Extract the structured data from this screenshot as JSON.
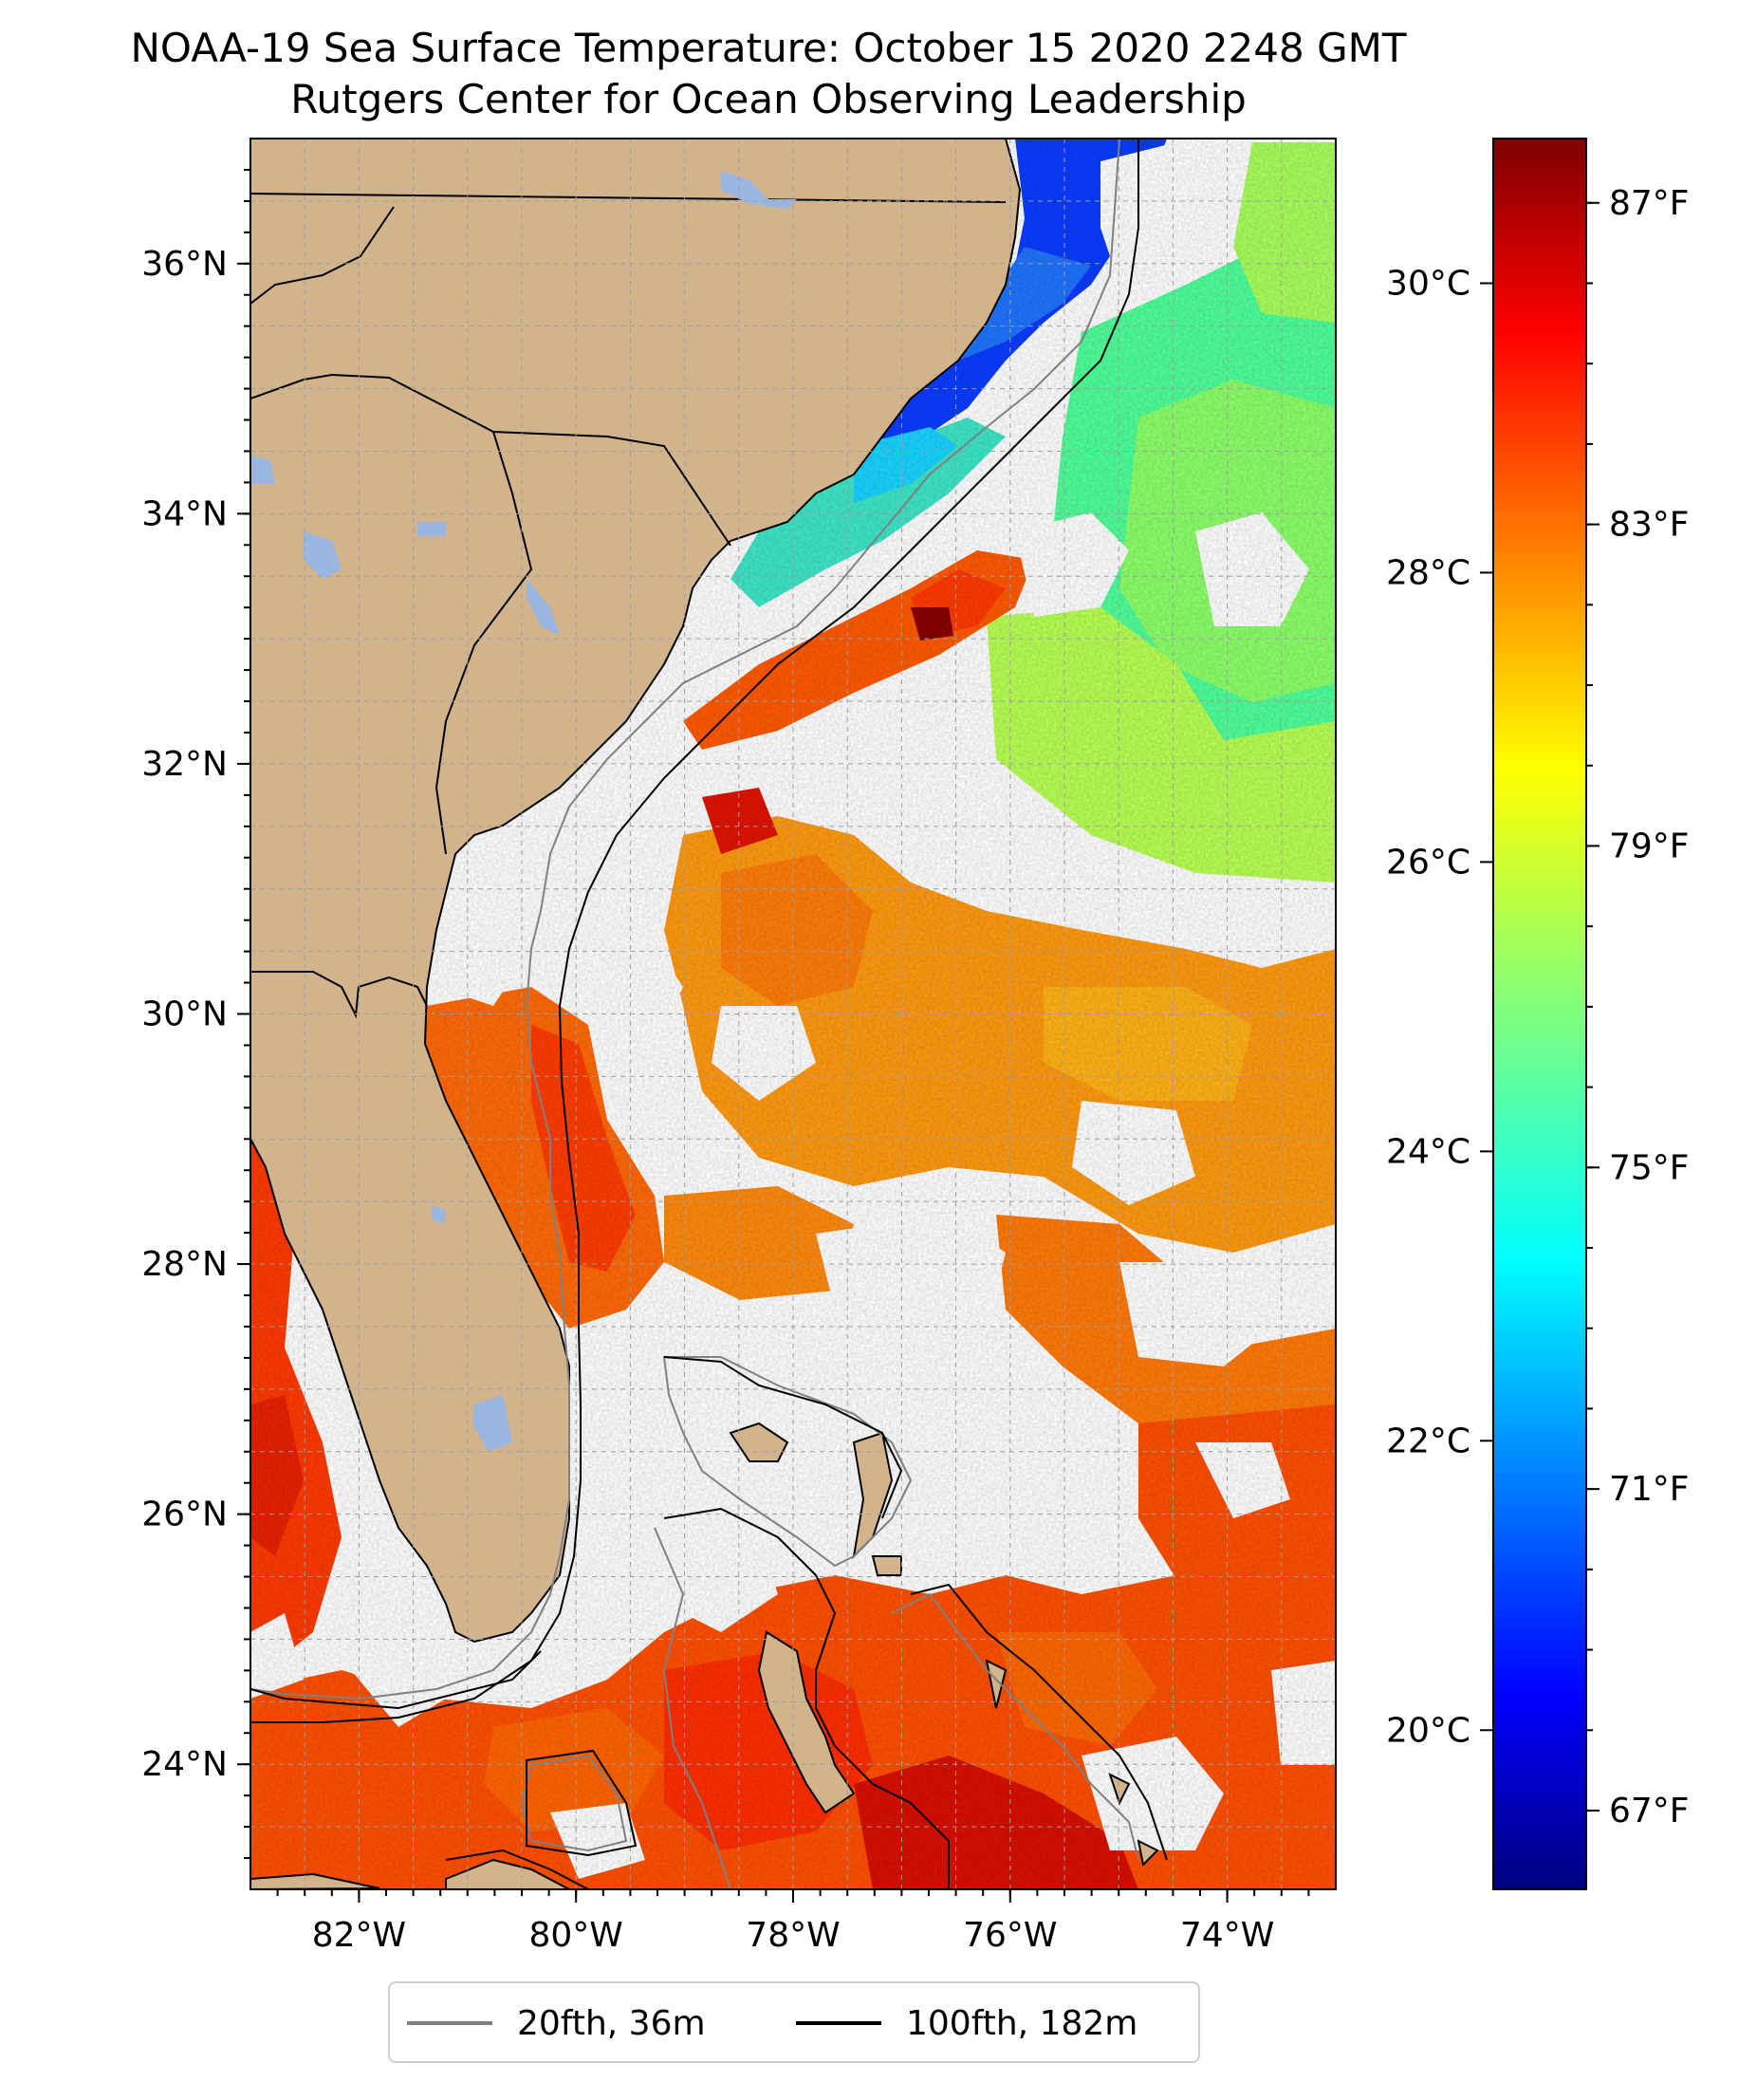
{
  "title_line1": "NOAA-19 Sea Surface Temperature: October 15 2020 2248 GMT",
  "title_line2": "Rutgers Center for Ocean Observing Leadership",
  "map": {
    "extent": {
      "lon": [
        -83,
        -73
      ],
      "lat": [
        23,
        37
      ]
    },
    "lat_ticks": [
      {
        "value": 24,
        "label": "24°N"
      },
      {
        "value": 26,
        "label": "26°N"
      },
      {
        "value": 28,
        "label": "28°N"
      },
      {
        "value": 30,
        "label": "30°N"
      },
      {
        "value": 32,
        "label": "32°N"
      },
      {
        "value": 34,
        "label": "34°N"
      },
      {
        "value": 36,
        "label": "36°N"
      }
    ],
    "lon_ticks": [
      {
        "value": -82,
        "label": "82°W"
      },
      {
        "value": -80,
        "label": "80°W"
      },
      {
        "value": -78,
        "label": "78°W"
      },
      {
        "value": -76,
        "label": "76°W"
      },
      {
        "value": -74,
        "label": "74°W"
      }
    ],
    "gridlines": "dashed",
    "colors": {
      "land": "#d2b48c",
      "lakes": "#9ab6e0",
      "clouds": "#ffffff"
    }
  },
  "colorbar": {
    "colormap": "jet",
    "range_c": [
      18.9,
      31.0
    ],
    "celsius_ticks": [
      {
        "value": 20,
        "label": "20°C"
      },
      {
        "value": 22,
        "label": "22°C"
      },
      {
        "value": 24,
        "label": "24°C"
      },
      {
        "value": 26,
        "label": "26°C"
      },
      {
        "value": 28,
        "label": "28°C"
      },
      {
        "value": 30,
        "label": "30°C"
      }
    ],
    "fahrenheit_ticks": [
      {
        "value": 67,
        "label": "67°F"
      },
      {
        "value": 71,
        "label": "71°F"
      },
      {
        "value": 75,
        "label": "75°F"
      },
      {
        "value": 79,
        "label": "79°F"
      },
      {
        "value": 83,
        "label": "83°F"
      },
      {
        "value": 87,
        "label": "87°F"
      }
    ]
  },
  "legend": {
    "placement": "bottom-center",
    "items": [
      {
        "label": "20fth, 36m",
        "color": "#808080"
      },
      {
        "label": "100fth, 182m",
        "color": "#000000"
      }
    ]
  }
}
